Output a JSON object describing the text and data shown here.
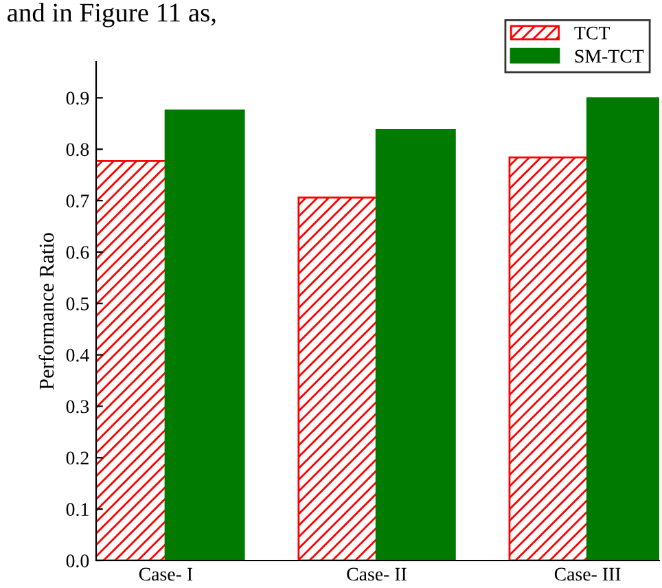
{
  "chart_data": {
    "type": "bar",
    "categories": [
      "Case- I",
      "Case- II",
      "Case- III"
    ],
    "series": [
      {
        "name": "TCT",
        "color": "#ff0000",
        "values": [
          0.777,
          0.706,
          0.784
        ]
      },
      {
        "name": "SM-TCT",
        "color": "#007a00",
        "values": [
          0.875,
          0.837,
          0.899
        ]
      }
    ],
    "ylabel": "Performance Ratio",
    "ylim": [
      0,
      0.97
    ],
    "yticks": [
      "0.0",
      0.1,
      0.2,
      0.3,
      0.4,
      0.5,
      0.6,
      0.7,
      0.8,
      0.9
    ],
    "legend": "top right",
    "grid": false,
    "annotations": [
      "and in Figure 11 as,"
    ]
  }
}
